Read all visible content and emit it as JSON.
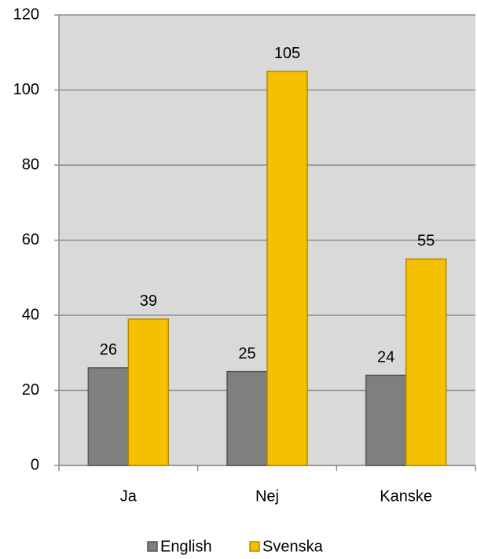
{
  "chart_data": {
    "type": "bar",
    "categories": [
      "Ja",
      "Nej",
      "Kanske"
    ],
    "series": [
      {
        "name": "English",
        "color": "#7f7f7f",
        "values": [
          26,
          25,
          24
        ]
      },
      {
        "name": "Svenska",
        "color": "#f5c000",
        "values": [
          39,
          105,
          55
        ]
      }
    ],
    "ylim": [
      0,
      120
    ],
    "yticks": [
      0,
      20,
      40,
      60,
      80,
      100,
      120
    ],
    "grid": true,
    "legend": "bottom"
  }
}
